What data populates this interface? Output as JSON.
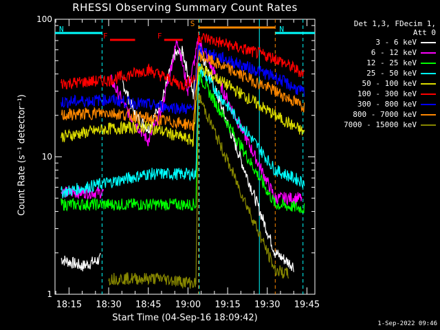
{
  "chart_data": {
    "type": "line",
    "title": "RHESSI Observing Summary Count Rates",
    "xlabel": "Start Time (04-Sep-16 18:09:42)",
    "ylabel": "Count Rate (s⁻¹ detector⁻¹)",
    "yscale": "log",
    "ylim": [
      1,
      100
    ],
    "y_ticks": [
      1,
      10,
      100
    ],
    "xlim": [
      "18:09:42",
      "19:48:00"
    ],
    "x_ticks": [
      "18:15",
      "18:30",
      "18:45",
      "19:00",
      "19:15",
      "19:30",
      "19:45"
    ],
    "legend_header": [
      "Det 1,3, FDecim 1,",
      "Att 0"
    ],
    "legend_position": "right",
    "series": [
      {
        "name": "3 - 6 keV",
        "color": "#ffffff",
        "values": [
          {
            "t": "18:12",
            "v": 1.8
          },
          {
            "t": "18:20",
            "v": 1.6
          },
          {
            "t": "18:27",
            "v": 1.8
          },
          {
            "t": "18:30",
            "v": null
          },
          {
            "t": "18:35",
            "v": 36
          },
          {
            "t": "18:40",
            "v": 20
          },
          {
            "t": "18:45",
            "v": 16
          },
          {
            "t": "18:50",
            "v": 25
          },
          {
            "t": "18:55",
            "v": 55
          },
          {
            "t": "18:58",
            "v": 58
          },
          {
            "t": "19:02",
            "v": 28
          },
          {
            "t": "19:04",
            "v": 65
          },
          {
            "t": "19:33",
            "v": 2.0
          },
          {
            "t": "19:40",
            "v": 1.6
          }
        ]
      },
      {
        "name": "6 - 12 keV",
        "color": "#ff00ff",
        "values": [
          {
            "t": "18:12",
            "v": 5.5
          },
          {
            "t": "18:28",
            "v": 5.5
          },
          {
            "t": "18:30",
            "v": null
          },
          {
            "t": "18:31",
            "v": 36
          },
          {
            "t": "18:38",
            "v": 20
          },
          {
            "t": "18:45",
            "v": 13
          },
          {
            "t": "18:50",
            "v": 22
          },
          {
            "t": "18:56",
            "v": 72
          },
          {
            "t": "19:00",
            "v": 30
          },
          {
            "t": "19:04",
            "v": 70
          },
          {
            "t": "19:33",
            "v": 5.0
          },
          {
            "t": "19:43",
            "v": 5.0
          }
        ]
      },
      {
        "name": "12 - 25 keV",
        "color": "#00ff00",
        "values": [
          {
            "t": "18:12",
            "v": 4.5
          },
          {
            "t": "18:30",
            "v": 4.5
          },
          {
            "t": "18:45",
            "v": 4.5
          },
          {
            "t": "19:03",
            "v": 4.5
          },
          {
            "t": "19:04",
            "v": 40
          },
          {
            "t": "19:33",
            "v": 4.5
          },
          {
            "t": "19:44",
            "v": 4.2
          }
        ]
      },
      {
        "name": "25 - 50 keV",
        "color": "#00ffff",
        "values": [
          {
            "t": "18:12",
            "v": 5.5
          },
          {
            "t": "18:30",
            "v": 6.5
          },
          {
            "t": "18:45",
            "v": 7.5
          },
          {
            "t": "19:03",
            "v": 7.5
          },
          {
            "t": "19:04",
            "v": 45
          },
          {
            "t": "19:33",
            "v": 8.0
          },
          {
            "t": "19:44",
            "v": 6.5
          }
        ]
      },
      {
        "name": "50 - 100 keV",
        "color": "#dddd00",
        "values": [
          {
            "t": "18:12",
            "v": 14
          },
          {
            "t": "18:30",
            "v": 16
          },
          {
            "t": "18:45",
            "v": 16.5
          },
          {
            "t": "19:02",
            "v": 13
          },
          {
            "t": "19:04",
            "v": 45
          },
          {
            "t": "19:33",
            "v": 20
          },
          {
            "t": "19:44",
            "v": 15
          }
        ]
      },
      {
        "name": "100 - 300 keV",
        "color": "#ff0000",
        "values": [
          {
            "t": "18:12",
            "v": 34
          },
          {
            "t": "18:30",
            "v": 36
          },
          {
            "t": "18:45",
            "v": 43
          },
          {
            "t": "18:58",
            "v": 33
          },
          {
            "t": "19:03",
            "v": 38
          },
          {
            "t": "19:04",
            "v": 75
          },
          {
            "t": "19:33",
            "v": 52
          },
          {
            "t": "19:44",
            "v": 40
          }
        ]
      },
      {
        "name": "300 - 800 keV",
        "color": "#0000ff",
        "values": [
          {
            "t": "18:12",
            "v": 25
          },
          {
            "t": "18:30",
            "v": 26
          },
          {
            "t": "18:45",
            "v": 24
          },
          {
            "t": "19:02",
            "v": 22
          },
          {
            "t": "19:04",
            "v": 60
          },
          {
            "t": "19:33",
            "v": 38
          },
          {
            "t": "19:44",
            "v": 29
          }
        ]
      },
      {
        "name": "800 - 7000 keV",
        "color": "#ff8800",
        "values": [
          {
            "t": "18:12",
            "v": 20
          },
          {
            "t": "18:30",
            "v": 21
          },
          {
            "t": "18:45",
            "v": 19
          },
          {
            "t": "19:02",
            "v": 17
          },
          {
            "t": "19:04",
            "v": 55
          },
          {
            "t": "19:33",
            "v": 30
          },
          {
            "t": "19:44",
            "v": 23
          }
        ]
      },
      {
        "name": "7000 - 15000 keV",
        "color": "#888800",
        "values": [
          {
            "t": "18:30",
            "v": 1.3
          },
          {
            "t": "18:50",
            "v": 1.3
          },
          {
            "t": "19:03",
            "v": 1.2
          },
          {
            "t": "19:04",
            "v": 28
          },
          {
            "t": "19:33",
            "v": 1.5
          },
          {
            "t": "19:38",
            "v": 1.4
          }
        ]
      }
    ],
    "annotations": [
      {
        "label": "N",
        "color": "#00ffff",
        "from": "18:09:42",
        "to": "18:27:30"
      },
      {
        "label": "N",
        "color": "#00ffff",
        "from": "19:33:00",
        "to": "19:48:00"
      },
      {
        "label": "F",
        "color": "#ff0000",
        "from": "18:30:30",
        "to": "18:40:00"
      },
      {
        "label": "F",
        "color": "#ff0000",
        "from": "18:51:00",
        "to": "18:58:00"
      },
      {
        "label": "S",
        "color": "#ff8800",
        "from": "19:04:00",
        "to": "19:33:00"
      }
    ],
    "vertical_markers": [
      {
        "t": "18:27:30",
        "color": "#00ffff",
        "style": "dashed"
      },
      {
        "t": "19:04:00",
        "color": "#ff8800",
        "style": "dashed"
      },
      {
        "t": "19:04:15",
        "color": "#00ffff",
        "style": "dashed"
      },
      {
        "t": "19:27:00",
        "color": "#00ffff",
        "style": "solid"
      },
      {
        "t": "19:33:00",
        "color": "#ff8800",
        "style": "dashed"
      },
      {
        "t": "19:43:30",
        "color": "#00ffff",
        "style": "dashed"
      }
    ],
    "grid": false
  },
  "footer": {
    "timestamp": "1-Sep-2022 09:46"
  }
}
